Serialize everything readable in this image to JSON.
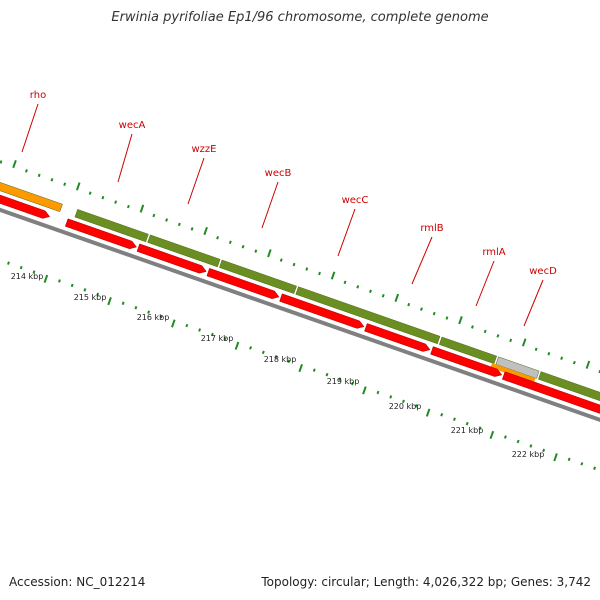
{
  "title": "Erwinia pyrifoliae Ep1/96 chromosome, complete genome",
  "footer": {
    "accession": "Accession: NC_012214",
    "summary": "Topology: circular; Length: 4,026,322 bp; Genes: 3,742"
  },
  "colors": {
    "backbone": "#808080",
    "reverse_cds": "#ff0000",
    "forward_cds": "#6b8e23",
    "misc_feature": "#ff9900",
    "other_feature": "#c0c0c0",
    "tick": "#228b22",
    "label": "#cc0000",
    "label_line": "#cc0000"
  },
  "gene_labels": [
    {
      "name": "rho"
    },
    {
      "name": "wecA"
    },
    {
      "name": "wzzE"
    },
    {
      "name": "wecB"
    },
    {
      "name": "wecC"
    },
    {
      "name": "rmlB"
    },
    {
      "name": "rmlA"
    },
    {
      "name": "wecD"
    }
  ],
  "kbp_labels": [
    "214 kbp",
    "215 kbp",
    "216 kbp",
    "217 kbp",
    "218 kbp",
    "219 kbp",
    "220 kbp",
    "221 kbp",
    "222 kbp"
  ]
}
